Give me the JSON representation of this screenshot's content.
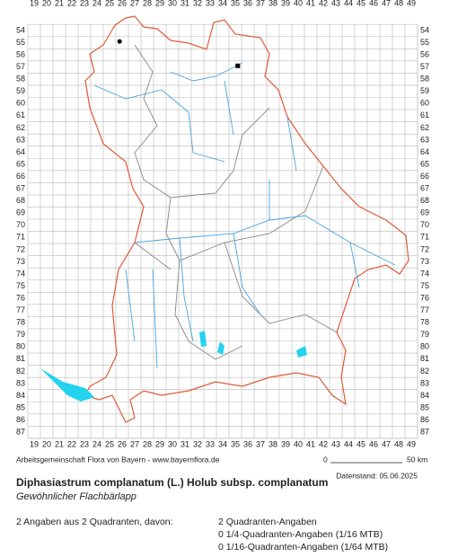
{
  "map": {
    "columns": [
      19,
      20,
      21,
      22,
      23,
      24,
      25,
      26,
      27,
      28,
      29,
      30,
      31,
      32,
      33,
      34,
      35,
      36,
      37,
      38,
      39,
      40,
      41,
      42,
      43,
      44,
      45,
      46,
      47,
      48,
      49
    ],
    "rows": [
      54,
      55,
      56,
      57,
      58,
      59,
      60,
      61,
      62,
      63,
      64,
      65,
      66,
      67,
      68,
      69,
      70,
      71,
      72,
      73,
      74,
      75,
      76,
      77,
      78,
      79,
      80,
      81,
      82,
      83,
      84,
      85,
      86,
      87
    ],
    "points": [
      {
        "x": 25.8,
        "y": 54.9,
        "shape": "circle"
      },
      {
        "x": 35.2,
        "y": 56.9,
        "shape": "square"
      }
    ]
  },
  "footer": {
    "credit": "Arbeitsgemeinschaft Flora von Bayern - www.bayernflora.de",
    "scale_start": "0",
    "scale_end": "50 km",
    "date": "Datenstand: 05.06.2025"
  },
  "species": {
    "title": "Diphasiastrum complanatum (L.) Holub subsp. complanatum",
    "common_name": "Gewöhnlicher Flachbärlapp"
  },
  "summary": {
    "total": "2 Angaben aus 2 Quadranten, davon:",
    "lines": [
      "2 Quadranten-Angaben",
      "0 1/4-Quadranten-Angaben (1/16 MTB)",
      "0 1/16-Quadranten-Angaben (1/64 MTB)"
    ]
  }
}
